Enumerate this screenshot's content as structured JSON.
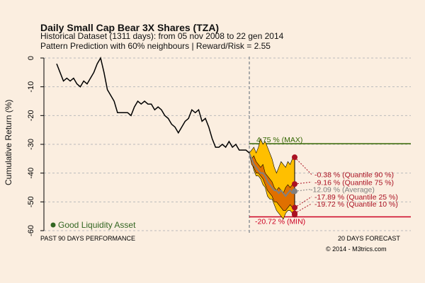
{
  "chart_data": {
    "type": "line",
    "title": "Daily Small Cap Bear 3X Shares (TZA)",
    "subtitle1": "Historical Dataset (1311 days): from  05 nov 2008  to  22 gen 2014",
    "subtitle2": "Pattern Prediction with 60% neighbours | Reward/Risk = 2.55",
    "ylabel": "Cumulative Return (%)",
    "ylim": [
      -60,
      0
    ],
    "yticks": [
      "0",
      "-10",
      "-20",
      "-30",
      "-40",
      "-50",
      "-60"
    ],
    "ytick_values": [
      0,
      -10,
      -20,
      -30,
      -40,
      -50,
      -60
    ],
    "past_label": "PAST  90  DAYS PERFORMANCE",
    "forecast_label": "20  DAYS FORECAST",
    "copyright": "© 2014 - M3trics.com",
    "legend": "Good Liquidity Asset",
    "colors": {
      "history": "#000000",
      "outer_band": "#ffbf00",
      "inner_band": "#e07000",
      "average": "#808080",
      "max": "#336600",
      "min": "#cc0022",
      "points": "#aa1122"
    },
    "history": [
      -2,
      -5,
      -8,
      -7,
      -8,
      -7,
      -9,
      -10,
      -8,
      -9,
      -7,
      -5,
      -2,
      0,
      -5,
      -11,
      -13,
      -15,
      -19,
      -19,
      -19,
      -19,
      -20,
      -17,
      -15,
      -16,
      -15,
      -16,
      -16,
      -18,
      -17,
      -18,
      -20,
      -21,
      -23,
      -24,
      -26,
      -24,
      -22,
      -21,
      -18,
      -19,
      -18,
      -22,
      -21,
      -24,
      -28,
      -31,
      -31,
      -30,
      -31,
      -29,
      -31,
      -30,
      -32,
      -32,
      -32,
      -33
    ],
    "forecast": {
      "q90": [
        -33,
        -32,
        -31,
        -33,
        -31,
        -28,
        -30,
        -29,
        -31,
        -33,
        -35,
        -38,
        -40,
        -38,
        -36,
        -37,
        -38,
        -36,
        -37,
        -35,
        -34.5
      ],
      "q75": [
        -33,
        -35,
        -34,
        -36,
        -37,
        -38,
        -37,
        -40,
        -41,
        -42,
        -43,
        -45,
        -46,
        -45,
        -46,
        -47,
        -45,
        -44,
        -45,
        -44,
        -43.8
      ],
      "avg": [
        -33,
        -35,
        -37,
        -38,
        -39,
        -40,
        -40,
        -41,
        -43,
        -44,
        -45,
        -46,
        -46,
        -47,
        -46,
        -47,
        -48,
        -47,
        -46,
        -47,
        -46.3
      ],
      "q25": [
        -33,
        -37,
        -38,
        -40,
        -40,
        -41,
        -42,
        -44,
        -46,
        -47,
        -48,
        -50,
        -50,
        -51,
        -52,
        -53,
        -53,
        -52,
        -51,
        -52,
        -52
      ],
      "q10": [
        -33,
        -36,
        -39,
        -41,
        -41,
        -42,
        -44,
        -45,
        -48,
        -49,
        -49,
        -51,
        -53,
        -54,
        -55,
        -56,
        -54,
        -53,
        -53,
        -54,
        -54
      ]
    },
    "annotations": {
      "max": "4.75 % (MAX)",
      "min": "-20.72 % (MIN)",
      "q90": "-0.38 % (Quantile  90 %)",
      "q75": "-9.16 % (Quantile  75 %)",
      "avg": "-12.09 % (Average)",
      "q25": "-17.89 % (Quantile  25 %)",
      "q10": "-19.72 % (Quantile  10 %)"
    },
    "max_level": -29.8,
    "min_level": -55.2
  }
}
